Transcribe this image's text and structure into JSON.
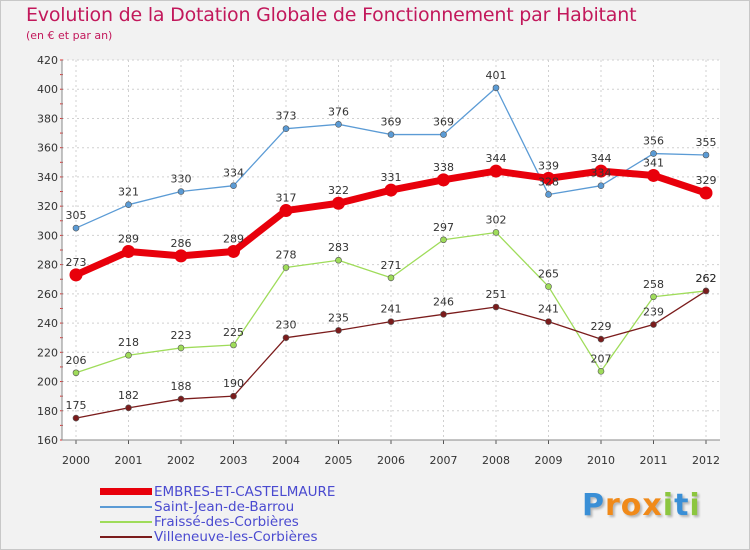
{
  "header": {
    "title": "Evolution de la Dotation Globale de Fonctionnement par Habitant",
    "subtitle": "(en € et par an)"
  },
  "branding": {
    "logo_text": "Proxiti",
    "letters": [
      "P",
      "r",
      "o",
      "x",
      "i",
      "t",
      "i"
    ],
    "letter_colors": [
      "#3a8fd6",
      "#f08a1a",
      "#f08a1a",
      "#f08a1a",
      "#8cc63f",
      "#3a8fd6",
      "#8cc63f"
    ]
  },
  "chart_data": {
    "type": "line",
    "x": [
      2000,
      2001,
      2002,
      2003,
      2004,
      2005,
      2006,
      2007,
      2008,
      2009,
      2010,
      2011,
      2012
    ],
    "ylim": [
      160,
      420
    ],
    "yticks": [
      160,
      180,
      200,
      220,
      240,
      260,
      280,
      300,
      320,
      340,
      360,
      380,
      400,
      420
    ],
    "grid": true,
    "legend_position": "bottom-left",
    "series": [
      {
        "name": "EMBRES-ET-CASTELMAURE",
        "color": "#e8000b",
        "emphasis": true,
        "values": [
          273,
          289,
          286,
          289,
          317,
          322,
          331,
          338,
          344,
          339,
          344,
          341,
          329
        ]
      },
      {
        "name": "Saint-Jean-de-Barrou",
        "color": "#5b9bd5",
        "values": [
          305,
          321,
          330,
          334,
          373,
          376,
          369,
          369,
          401,
          328,
          334,
          356,
          355
        ]
      },
      {
        "name": "Fraissé-des-Corbières",
        "color": "#9fdc5a",
        "values": [
          206,
          218,
          223,
          225,
          278,
          283,
          271,
          297,
          302,
          265,
          207,
          258,
          262
        ]
      },
      {
        "name": "Villeneuve-les-Corbières",
        "color": "#7b1c1c",
        "values": [
          175,
          182,
          188,
          190,
          230,
          235,
          241,
          246,
          251,
          241,
          229,
          239,
          262
        ]
      }
    ]
  }
}
